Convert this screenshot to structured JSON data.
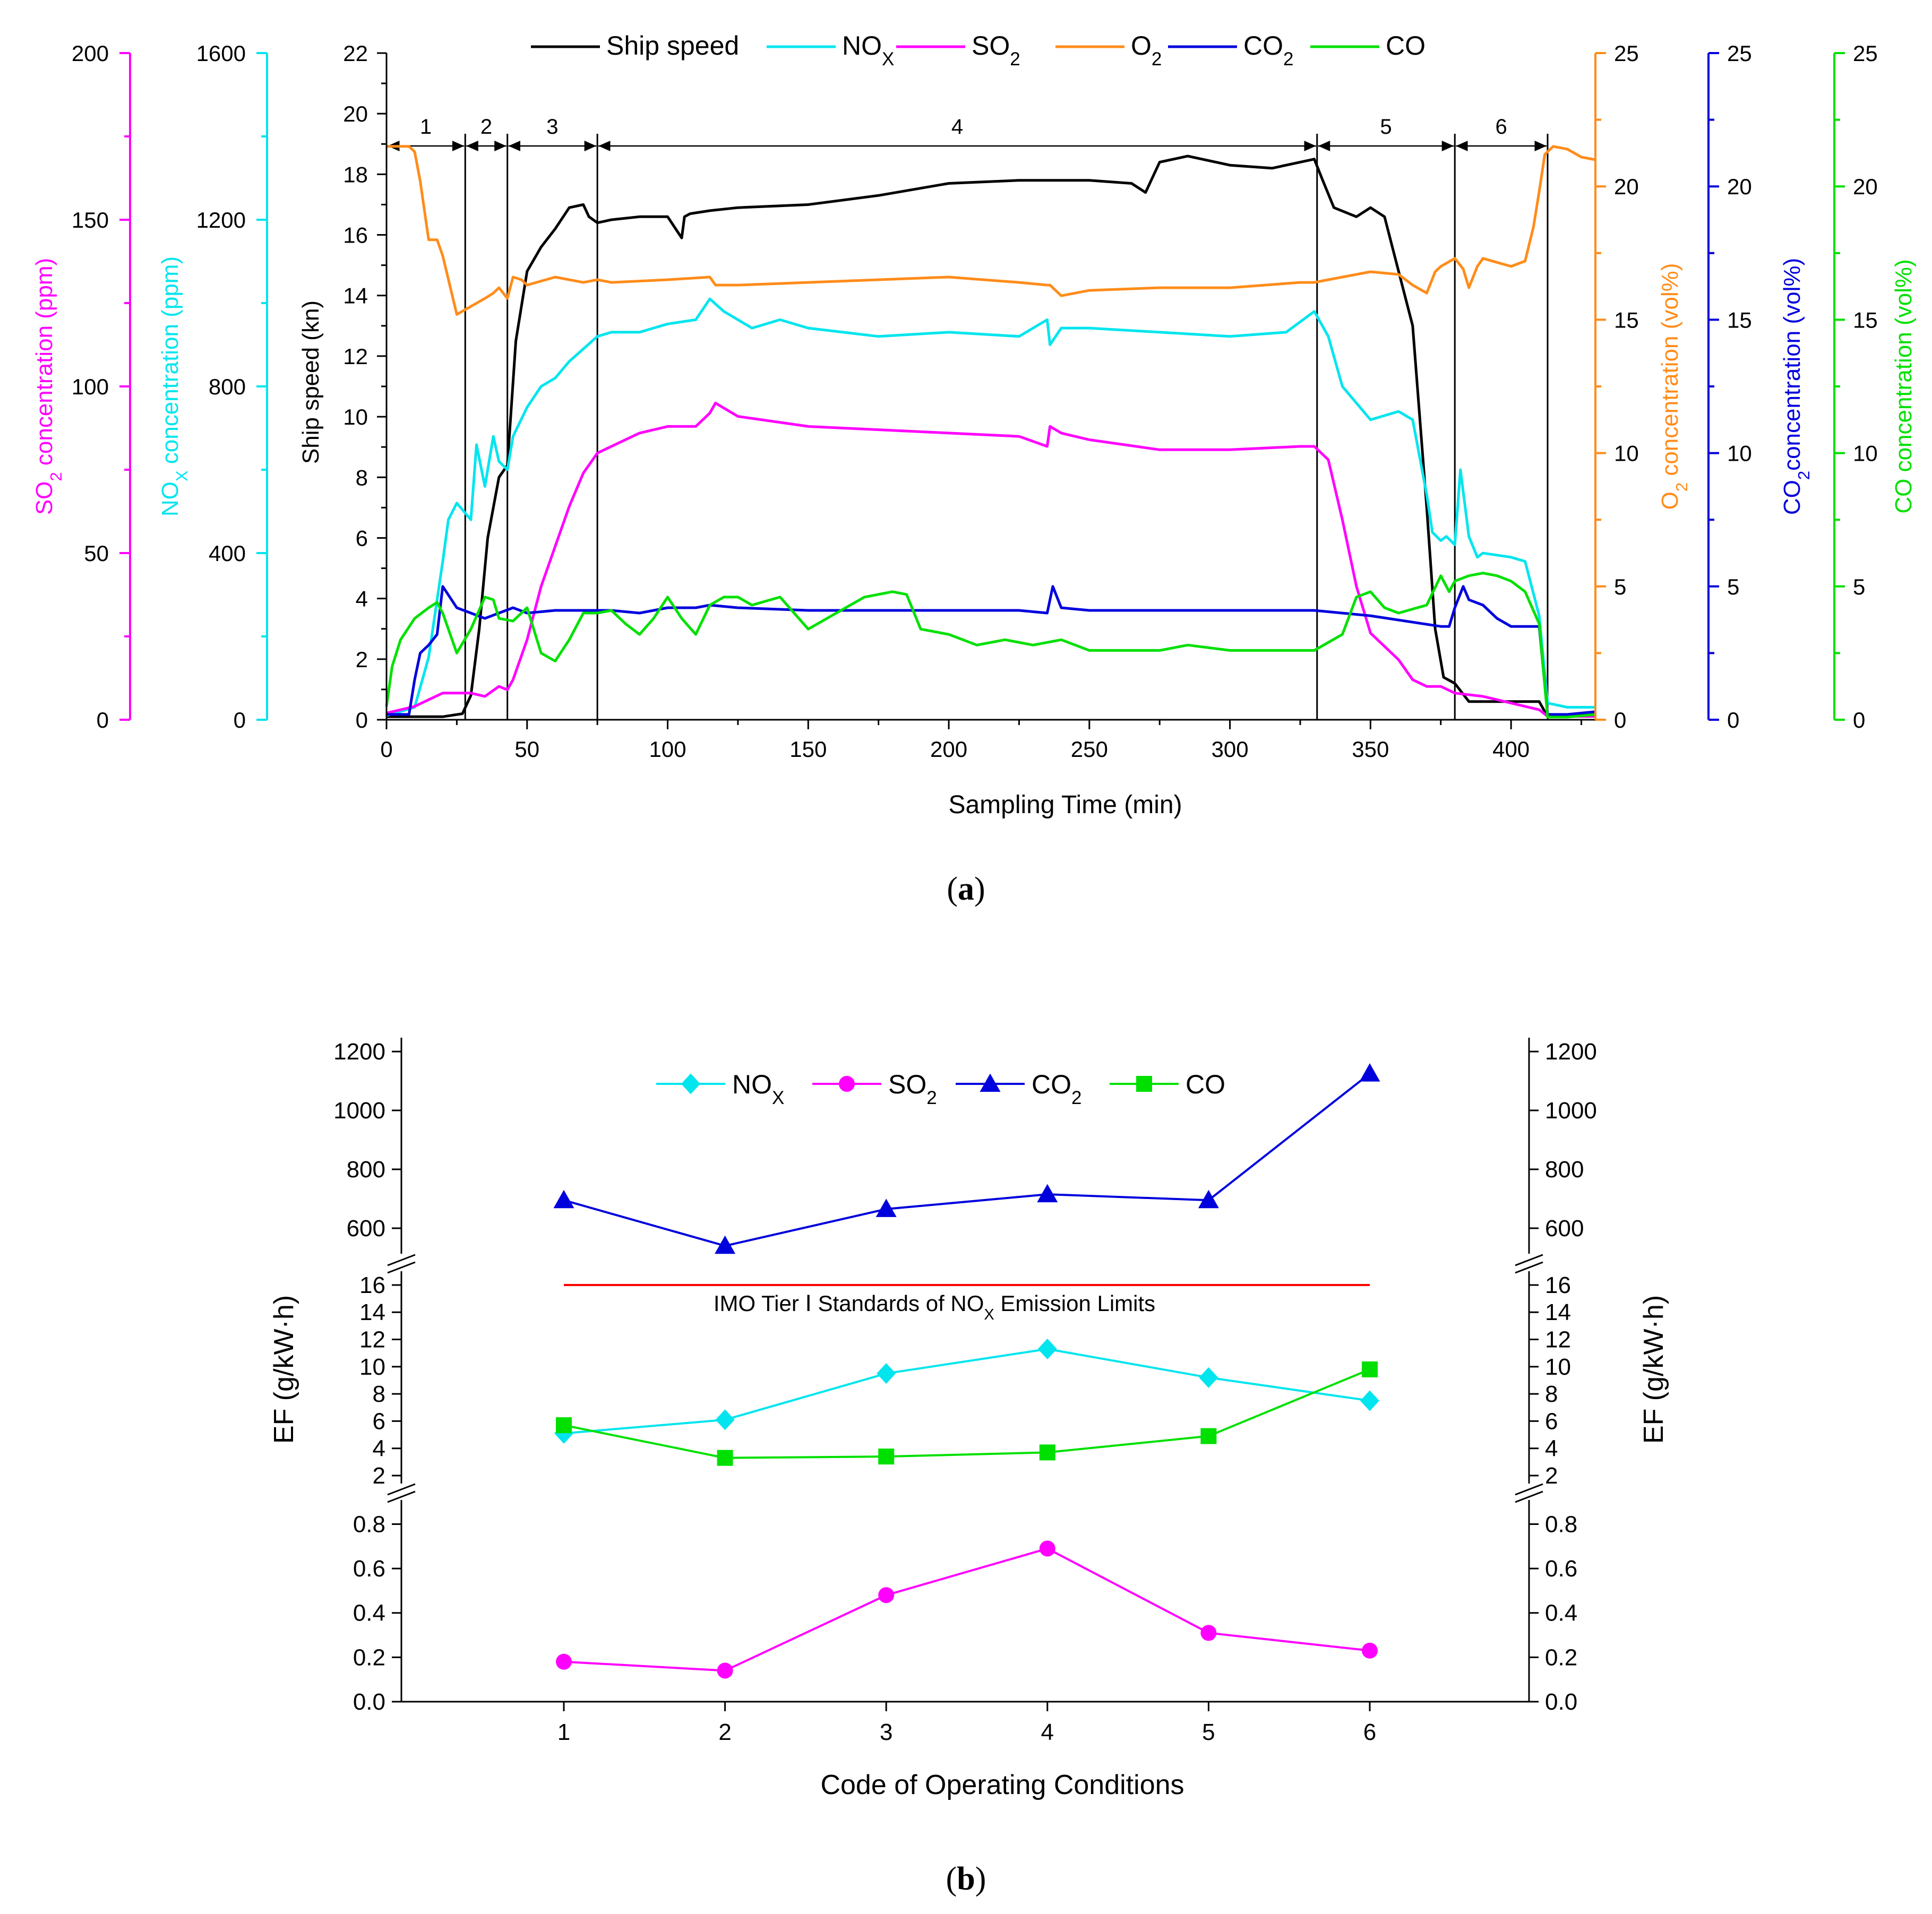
{
  "chart_data": [
    {
      "type": "line",
      "panel": "a",
      "xlabel": "Sampling Time (min)",
      "xlim": [
        0,
        430
      ],
      "xticks": [
        0,
        50,
        100,
        150,
        200,
        250,
        300,
        350,
        400
      ],
      "axes": {
        "speed": {
          "label": "Ship speed (kn)",
          "range": [
            0,
            22
          ],
          "ticks": [
            0,
            2,
            4,
            6,
            8,
            10,
            12,
            14,
            16,
            18,
            20,
            22
          ],
          "color": "#000000"
        },
        "so2": {
          "label_main": "SO",
          "label_sub": "2",
          "label_rest": " concentration (ppm)",
          "range": [
            0,
            200
          ],
          "ticks": [
            0,
            50,
            100,
            150,
            200
          ],
          "color": "#ff00ff"
        },
        "nox": {
          "label_main": "NO",
          "label_sub": "X",
          "label_rest": " concentration (ppm)",
          "range": [
            0,
            1600
          ],
          "ticks": [
            0,
            400,
            800,
            1200,
            1600
          ],
          "color": "#00e5ee"
        },
        "o2": {
          "label_main": "O",
          "label_sub": "2",
          "label_rest": " concentration (vol%)",
          "range": [
            0,
            25
          ],
          "ticks": [
            0,
            5,
            10,
            15,
            20,
            25
          ],
          "color": "#ff8c1a"
        },
        "co2": {
          "label_main": "CO",
          "label_sub": "2",
          "label_rest": "concentration (vol%)",
          "range": [
            0,
            25
          ],
          "ticks": [
            0,
            5,
            10,
            15,
            20,
            25
          ],
          "color": "#0000dd"
        },
        "co": {
          "label_main": "CO concentration (vol%)",
          "label_sub": "",
          "label_rest": "",
          "range": [
            0,
            25
          ],
          "ticks": [
            0,
            5,
            10,
            15,
            20,
            25
          ],
          "color": "#00e000"
        }
      },
      "legend": [
        {
          "key": "speed",
          "main": "Ship speed",
          "sub": ""
        },
        {
          "key": "nox",
          "main": "NO",
          "sub": "X"
        },
        {
          "key": "so2",
          "main": "SO",
          "sub": "2"
        },
        {
          "key": "o2",
          "main": "O",
          "sub": "2"
        },
        {
          "key": "co2",
          "main": "CO",
          "sub": "2"
        },
        {
          "key": "co",
          "main": "CO",
          "sub": ""
        }
      ],
      "phases": {
        "boundaries": [
          28,
          43,
          75,
          331,
          380,
          413
        ],
        "labels": [
          {
            "text": "1",
            "from": 0,
            "to": 28
          },
          {
            "text": "2",
            "from": 28,
            "to": 43
          },
          {
            "text": "3",
            "from": 43,
            "to": 75
          },
          {
            "text": "4",
            "from": 75,
            "to": 331
          },
          {
            "text": "5",
            "from": 331,
            "to": 380
          },
          {
            "text": "6",
            "from": 380,
            "to": 413
          }
        ]
      },
      "series": [
        {
          "name": "Ship speed",
          "axis": "speed",
          "x": [
            0,
            10,
            20,
            27,
            30,
            33,
            36,
            40,
            43,
            46,
            50,
            55,
            60,
            65,
            70,
            72,
            75,
            80,
            90,
            100,
            105,
            106,
            108,
            115,
            125,
            150,
            175,
            200,
            225,
            250,
            265,
            270,
            275,
            285,
            300,
            315,
            330,
            333,
            337,
            345,
            350,
            355,
            365,
            370,
            373,
            376,
            380,
            385,
            390,
            400,
            410,
            413,
            420,
            430
          ],
          "y": [
            0.1,
            0.1,
            0.1,
            0.2,
            0.8,
            3,
            6,
            8,
            8.4,
            12.5,
            14.8,
            15.6,
            16.2,
            16.9,
            17,
            16.6,
            16.4,
            16.5,
            16.6,
            16.6,
            15.9,
            16.6,
            16.7,
            16.8,
            16.9,
            17,
            17.3,
            17.7,
            17.8,
            17.8,
            17.7,
            17.4,
            18.4,
            18.6,
            18.3,
            18.2,
            18.5,
            17.8,
            16.9,
            16.6,
            16.9,
            16.6,
            13,
            7,
            3,
            1.4,
            1.2,
            0.6,
            0.6,
            0.6,
            0.6,
            0.1,
            0.1,
            0.2
          ]
        },
        {
          "name": "NOx",
          "axis": "nox",
          "x": [
            0,
            10,
            15,
            20,
            22,
            25,
            30,
            32,
            35,
            38,
            40,
            43,
            45,
            50,
            55,
            60,
            65,
            70,
            75,
            80,
            90,
            100,
            110,
            115,
            120,
            125,
            130,
            140,
            150,
            175,
            200,
            225,
            235,
            236,
            240,
            250,
            275,
            300,
            320,
            330,
            335,
            340,
            345,
            350,
            360,
            365,
            370,
            372,
            375,
            377,
            380,
            382,
            385,
            388,
            390,
            400,
            405,
            410,
            413,
            420,
            430
          ],
          "y": [
            10,
            30,
            150,
            380,
            480,
            520,
            480,
            660,
            560,
            680,
            620,
            600,
            680,
            750,
            800,
            820,
            860,
            890,
            920,
            930,
            930,
            950,
            960,
            1010,
            980,
            960,
            940,
            960,
            940,
            920,
            930,
            920,
            960,
            900,
            940,
            940,
            930,
            920,
            930,
            980,
            920,
            800,
            760,
            720,
            740,
            720,
            540,
            450,
            430,
            440,
            420,
            600,
            440,
            390,
            400,
            390,
            380,
            250,
            40,
            30,
            30
          ]
        },
        {
          "name": "SO2",
          "axis": "so2",
          "x": [
            0,
            10,
            15,
            20,
            30,
            35,
            40,
            43,
            45,
            50,
            55,
            60,
            65,
            70,
            75,
            80,
            90,
            100,
            110,
            115,
            117,
            125,
            150,
            175,
            200,
            225,
            235,
            236,
            240,
            250,
            275,
            300,
            325,
            330,
            335,
            340,
            345,
            350,
            360,
            365,
            370,
            375,
            380,
            390,
            400,
            410,
            413,
            420,
            430
          ],
          "y": [
            2,
            4,
            6,
            8,
            8,
            7,
            10,
            9,
            12,
            24,
            40,
            52,
            64,
            74,
            80,
            82,
            86,
            88,
            88,
            92,
            95,
            91,
            88,
            87,
            86,
            85,
            82,
            88,
            86,
            84,
            81,
            81,
            82,
            82,
            78,
            60,
            40,
            26,
            18,
            12,
            10,
            10,
            8,
            7,
            5,
            3,
            1,
            1,
            1
          ]
        },
        {
          "name": "O2",
          "axis": "o2",
          "x": [
            0,
            5,
            8,
            10,
            12,
            15,
            18,
            20,
            25,
            30,
            35,
            38,
            40,
            43,
            45,
            48,
            50,
            60,
            70,
            75,
            80,
            100,
            115,
            117,
            125,
            150,
            175,
            200,
            225,
            235,
            236,
            240,
            250,
            275,
            300,
            325,
            330,
            335,
            340,
            345,
            350,
            360,
            365,
            370,
            373,
            375,
            380,
            383,
            385,
            388,
            390,
            400,
            405,
            408,
            410,
            412,
            415,
            420,
            425,
            430
          ],
          "y": [
            21.5,
            21.5,
            21.5,
            21.3,
            20.2,
            18,
            18,
            17.4,
            15.2,
            15.5,
            15.8,
            16,
            16.2,
            15.8,
            16.6,
            16.5,
            16.3,
            16.6,
            16.4,
            16.5,
            16.4,
            16.5,
            16.6,
            16.3,
            16.3,
            16.4,
            16.5,
            16.6,
            16.4,
            16.3,
            16.3,
            15.9,
            16.1,
            16.2,
            16.2,
            16.4,
            16.4,
            16.5,
            16.6,
            16.7,
            16.8,
            16.7,
            16.3,
            16,
            16.8,
            17,
            17.3,
            16.9,
            16.2,
            17,
            17.3,
            17,
            17.2,
            18.5,
            19.8,
            21.2,
            21.5,
            21.4,
            21.1,
            21
          ]
        },
        {
          "name": "CO2",
          "axis": "co2",
          "x": [
            0,
            5,
            8,
            10,
            12,
            15,
            18,
            20,
            25,
            30,
            35,
            40,
            45,
            50,
            60,
            70,
            75,
            80,
            90,
            100,
            110,
            115,
            125,
            150,
            175,
            200,
            225,
            235,
            237,
            240,
            250,
            275,
            300,
            325,
            330,
            350,
            375,
            378,
            380,
            383,
            385,
            390,
            395,
            400,
            405,
            410,
            413,
            420,
            430
          ],
          "y": [
            0.2,
            0.2,
            0.2,
            1.5,
            2.5,
            2.8,
            3.2,
            5,
            4.2,
            4,
            3.8,
            4,
            4.2,
            4,
            4.1,
            4.1,
            4.1,
            4.1,
            4,
            4.2,
            4.2,
            4.3,
            4.2,
            4.1,
            4.1,
            4.1,
            4.1,
            4,
            5,
            4.2,
            4.1,
            4.1,
            4.1,
            4.1,
            4.1,
            3.9,
            3.5,
            3.5,
            4.2,
            5,
            4.5,
            4.3,
            3.8,
            3.5,
            3.5,
            3.5,
            0.2,
            0.2,
            0.3
          ]
        },
        {
          "name": "CO",
          "axis": "co",
          "x": [
            0,
            2,
            5,
            10,
            15,
            18,
            20,
            25,
            30,
            35,
            38,
            40,
            45,
            50,
            55,
            60,
            65,
            70,
            75,
            80,
            85,
            90,
            95,
            100,
            105,
            110,
            115,
            120,
            125,
            130,
            140,
            150,
            160,
            170,
            180,
            185,
            190,
            200,
            210,
            220,
            230,
            240,
            250,
            275,
            285,
            300,
            330,
            340,
            345,
            350,
            355,
            360,
            370,
            375,
            378,
            380,
            385,
            390,
            395,
            400,
            405,
            410,
            413,
            420,
            430
          ],
          "y": [
            0.5,
            2,
            3,
            3.8,
            4.2,
            4.4,
            4,
            2.5,
            3.4,
            4.6,
            4.5,
            3.8,
            3.7,
            4.2,
            2.5,
            2.2,
            3,
            4,
            4,
            4.1,
            3.6,
            3.2,
            3.8,
            4.6,
            3.8,
            3.2,
            4.3,
            4.6,
            4.6,
            4.3,
            4.6,
            3.4,
            4,
            4.6,
            4.8,
            4.7,
            3.4,
            3.2,
            2.8,
            3,
            2.8,
            3,
            2.6,
            2.6,
            2.8,
            2.6,
            2.6,
            3.2,
            4.6,
            4.8,
            4.2,
            4,
            4.3,
            5.4,
            4.8,
            5.2,
            5.4,
            5.5,
            5.4,
            5.2,
            4.8,
            3.6,
            0.1,
            0.1,
            0.2
          ]
        }
      ]
    },
    {
      "type": "line",
      "panel": "b",
      "xlabel": "Code of Operating Conditions",
      "ylabel": "EF  (g/kW·h)",
      "categories": [
        "1",
        "2",
        "3",
        "4",
        "5",
        "6"
      ],
      "segments": {
        "top": {
          "range": [
            520,
            1280
          ],
          "ticks": [
            600,
            800,
            1000,
            1200
          ]
        },
        "mid": {
          "range": [
            2,
            17
          ],
          "ticks": [
            2,
            4,
            6,
            8,
            10,
            12,
            14,
            16
          ]
        },
        "bottom": {
          "range": [
            0,
            0.9
          ],
          "ticks": [
            0.0,
            0.2,
            0.4,
            0.6,
            0.8
          ]
        }
      },
      "legend": [
        {
          "key": "nox",
          "main": "NO",
          "sub": "X"
        },
        {
          "key": "so2",
          "main": "SO",
          "sub": "2"
        },
        {
          "key": "co2",
          "main": "CO",
          "sub": "2"
        },
        {
          "key": "co",
          "main": "CO",
          "sub": ""
        }
      ],
      "series": [
        {
          "name": "NOx",
          "key": "nox",
          "segment": "mid",
          "marker": "diamond",
          "color": "#00e5ee",
          "values": [
            5.1,
            6.1,
            9.5,
            11.3,
            9.2,
            7.5
          ]
        },
        {
          "name": "SO2",
          "key": "so2",
          "segment": "bottom",
          "marker": "circle",
          "color": "#ff00ff",
          "values": [
            0.18,
            0.14,
            0.48,
            0.69,
            0.31,
            0.23
          ]
        },
        {
          "name": "CO2",
          "key": "co2",
          "segment": "top",
          "marker": "triangle",
          "color": "#0000dd",
          "values": [
            695,
            540,
            665,
            715,
            695,
            1125
          ]
        },
        {
          "name": "CO",
          "key": "co",
          "segment": "mid",
          "marker": "square",
          "color": "#00e000",
          "values": [
            5.7,
            3.3,
            3.4,
            3.7,
            4.9,
            9.8
          ]
        }
      ],
      "limit_line": {
        "value": 16,
        "color": "#ff0000",
        "label_main": "IMO Tier  Ⅰ Standards of NO",
        "label_sub": "X",
        "label_rest": " Emission Limits"
      }
    }
  ],
  "captions": {
    "a": "a",
    "b": "b"
  }
}
